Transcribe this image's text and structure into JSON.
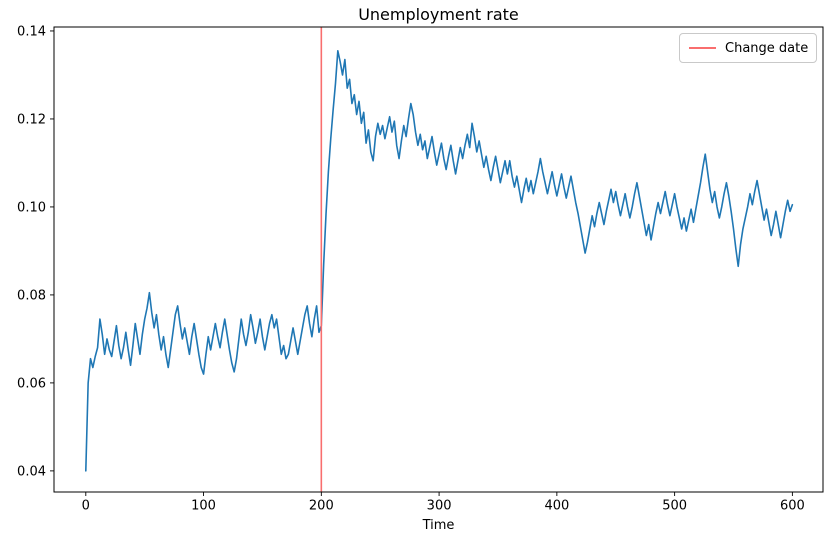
{
  "figure": {
    "title": "Unemployment rate",
    "xlabel": "Time"
  },
  "legend": {
    "position": "upper right",
    "entries": [
      {
        "label": "Change date",
        "color": "#f96e6e",
        "marker": "line"
      }
    ]
  },
  "chart_data": {
    "type": "line",
    "title": "Unemployment rate",
    "xlabel": "Time",
    "ylabel": "",
    "grid": false,
    "legend_position": "upper right",
    "xlim": [
      -27,
      626
    ],
    "ylim": [
      0.0352,
      0.1409
    ],
    "x_ticks": [
      0,
      100,
      200,
      300,
      400,
      500,
      600
    ],
    "x_tick_labels": [
      "0",
      "100",
      "200",
      "300",
      "400",
      "500",
      "600"
    ],
    "y_ticks": [
      0.04,
      0.06,
      0.08,
      0.1,
      0.12,
      0.14
    ],
    "y_tick_labels": [
      "0.04",
      "0.06",
      "0.08",
      "0.10",
      "0.12",
      "0.14"
    ],
    "annotations": [
      {
        "type": "vline",
        "x": 200,
        "color": "#f96e6e",
        "label": "Change date"
      }
    ],
    "series": [
      {
        "name": "unemployment_rate",
        "color": "#1f77b4",
        "x_start": 0,
        "x_step": 2,
        "summary": "Noisy series: starts at 0.040, rises fast and fluctuates near 0.070 until t=200 (change date), jumps to peak 0.1355 near t=214, then noisy decline toward ~0.100 by t=600.",
        "y": [
          0.04,
          0.06,
          0.0655,
          0.0635,
          0.066,
          0.068,
          0.0745,
          0.071,
          0.0665,
          0.07,
          0.0675,
          0.066,
          0.0695,
          0.073,
          0.0685,
          0.0655,
          0.068,
          0.0715,
          0.0675,
          0.064,
          0.0685,
          0.0735,
          0.07,
          0.0665,
          0.071,
          0.0745,
          0.077,
          0.0805,
          0.076,
          0.0725,
          0.0755,
          0.071,
          0.0675,
          0.0705,
          0.0665,
          0.0635,
          0.0675,
          0.0715,
          0.0755,
          0.0775,
          0.0735,
          0.07,
          0.0725,
          0.0695,
          0.0665,
          0.0705,
          0.0735,
          0.07,
          0.0665,
          0.0635,
          0.062,
          0.0665,
          0.0705,
          0.0675,
          0.0705,
          0.0735,
          0.0705,
          0.068,
          0.0715,
          0.0745,
          0.071,
          0.0675,
          0.0645,
          0.0625,
          0.0655,
          0.07,
          0.0745,
          0.071,
          0.0685,
          0.0715,
          0.0755,
          0.0725,
          0.069,
          0.0715,
          0.0745,
          0.0705,
          0.0675,
          0.0705,
          0.0735,
          0.0755,
          0.0725,
          0.0745,
          0.0705,
          0.0665,
          0.0685,
          0.0655,
          0.0665,
          0.0695,
          0.0725,
          0.0695,
          0.0665,
          0.0695,
          0.0725,
          0.0755,
          0.0775,
          0.0735,
          0.0705,
          0.0745,
          0.0775,
          0.0715,
          0.073,
          0.087,
          0.0985,
          0.108,
          0.1155,
          0.122,
          0.128,
          0.1355,
          0.133,
          0.13,
          0.1335,
          0.127,
          0.129,
          0.1235,
          0.1255,
          0.121,
          0.124,
          0.119,
          0.1215,
          0.1145,
          0.1175,
          0.1125,
          0.1105,
          0.116,
          0.119,
          0.1165,
          0.1185,
          0.1155,
          0.118,
          0.1205,
          0.117,
          0.1195,
          0.114,
          0.111,
          0.115,
          0.1185,
          0.116,
          0.12,
          0.1235,
          0.121,
          0.117,
          0.114,
          0.1165,
          0.113,
          0.115,
          0.111,
          0.1135,
          0.116,
          0.1125,
          0.1095,
          0.112,
          0.1145,
          0.111,
          0.1085,
          0.1115,
          0.114,
          0.1105,
          0.1075,
          0.1105,
          0.1135,
          0.111,
          0.114,
          0.1165,
          0.1135,
          0.119,
          0.116,
          0.1125,
          0.115,
          0.112,
          0.109,
          0.1115,
          0.1085,
          0.106,
          0.109,
          0.1115,
          0.1085,
          0.1055,
          0.108,
          0.1105,
          0.1075,
          0.1105,
          0.107,
          0.1045,
          0.107,
          0.104,
          0.101,
          0.104,
          0.1065,
          0.1035,
          0.106,
          0.103,
          0.1055,
          0.108,
          0.111,
          0.108,
          0.1055,
          0.103,
          0.1055,
          0.108,
          0.105,
          0.1025,
          0.105,
          0.1075,
          0.1045,
          0.102,
          0.1045,
          0.107,
          0.104,
          0.101,
          0.0985,
          0.0955,
          0.0925,
          0.0895,
          0.092,
          0.095,
          0.098,
          0.0955,
          0.0985,
          0.101,
          0.0985,
          0.096,
          0.099,
          0.1015,
          0.104,
          0.101,
          0.1035,
          0.1005,
          0.098,
          0.1005,
          0.103,
          0.1,
          0.0975,
          0.1,
          0.103,
          0.1055,
          0.1025,
          0.0995,
          0.0965,
          0.0935,
          0.096,
          0.0925,
          0.0955,
          0.0985,
          0.101,
          0.0985,
          0.101,
          0.1035,
          0.1005,
          0.098,
          0.1005,
          0.103,
          0.1,
          0.0975,
          0.095,
          0.0975,
          0.0945,
          0.097,
          0.0995,
          0.0965,
          0.0995,
          0.1025,
          0.1055,
          0.109,
          0.112,
          0.108,
          0.104,
          0.101,
          0.1035,
          0.1,
          0.0975,
          0.1,
          0.103,
          0.1055,
          0.1025,
          0.099,
          0.095,
          0.0905,
          0.0865,
          0.0915,
          0.095,
          0.0975,
          0.1,
          0.103,
          0.1005,
          0.1035,
          0.106,
          0.103,
          0.1,
          0.097,
          0.0995,
          0.0965,
          0.0935,
          0.096,
          0.099,
          0.096,
          0.093,
          0.096,
          0.099,
          0.1015,
          0.099,
          0.1005
        ]
      }
    ]
  }
}
